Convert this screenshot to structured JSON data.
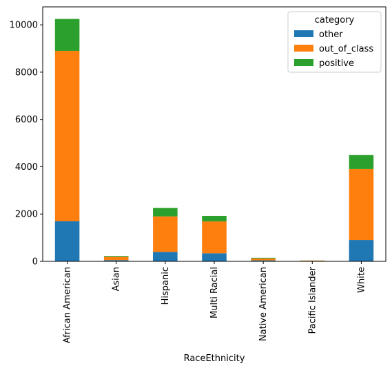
{
  "chart_data": {
    "type": "bar",
    "stacked": true,
    "categories": [
      "African American",
      "Asian",
      "Hispanic",
      "Multi Racial",
      "Native American",
      "Pacific Islander",
      "White"
    ],
    "series": [
      {
        "name": "other",
        "color": "#1f77b4",
        "values": [
          1700,
          50,
          400,
          340,
          40,
          8,
          900
        ]
      },
      {
        "name": "out_of_class",
        "color": "#ff7f0e",
        "values": [
          7200,
          140,
          1500,
          1350,
          85,
          22,
          3000
        ]
      },
      {
        "name": "positive",
        "color": "#2ca02c",
        "values": [
          1350,
          35,
          360,
          230,
          25,
          5,
          600
        ]
      }
    ],
    "xlabel": "RaceEthnicity",
    "ylabel": "",
    "ylim": [
      0,
      10760
    ],
    "yticks": [
      0,
      2000,
      4000,
      6000,
      8000,
      10000
    ],
    "legend": {
      "title": "category",
      "placement": "top-right"
    },
    "grid": false
  }
}
